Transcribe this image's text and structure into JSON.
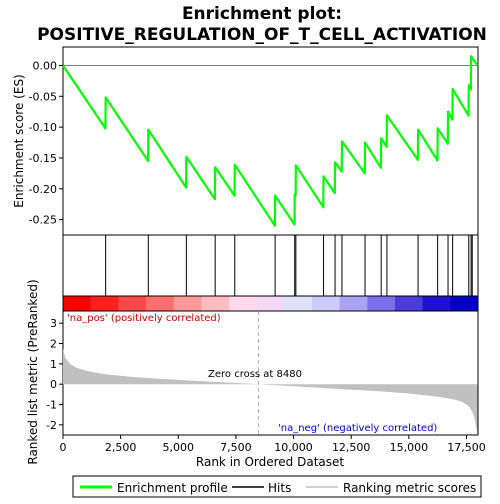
{
  "chart_data": {
    "type": "line",
    "title_line1": "Enrichment plot:",
    "title_line2": "POSITIVE_REGULATION_OF_T_CELL_ACTIVATION",
    "es_ylabel": "Enrichment score (ES)",
    "metric_ylabel": "Ranked list metric (PreRanked)",
    "xlabel": "Rank in Ordered Dataset",
    "x_range": [
      0,
      18000
    ],
    "es_ylim": [
      -0.275,
      0.03
    ],
    "metric_ylim": [
      -2.5,
      3.6
    ],
    "x_ticks": [
      "0",
      "2,500",
      "5,000",
      "7,500",
      "10,000",
      "12,500",
      "15,000",
      "17,500"
    ],
    "x_tick_values": [
      0,
      2500,
      5000,
      7500,
      10000,
      12500,
      15000,
      17500
    ],
    "es_ticks": [
      "0.00",
      "-0.05",
      "-0.10",
      "-0.15",
      "-0.20",
      "-0.25"
    ],
    "es_tick_values": [
      0.0,
      -0.05,
      -0.1,
      -0.15,
      -0.2,
      -0.25
    ],
    "metric_ticks": [
      "3",
      "2",
      "1",
      "0",
      "-1",
      "-2"
    ],
    "metric_tick_values": [
      3,
      2,
      1,
      0,
      -1,
      -2
    ],
    "positive_label": "'na_pos' (positively correlated)",
    "negative_label": "'na_neg' (negatively correlated)",
    "zero_cross_label": "Zero cross at 8480",
    "zero_cross": 8480,
    "legend": {
      "enrichment": "Enrichment profile",
      "hits": "Hits",
      "ranking": "Ranking metric scores"
    },
    "colors": {
      "enrichment": "#00ff00",
      "hits": "#000000",
      "ranking": "#c0c0c0",
      "positive_strong": "#ff0000",
      "negative_strong": "#0000ff"
    },
    "hits": [
      1850,
      3700,
      5350,
      6600,
      7450,
      9200,
      10050,
      10100,
      11300,
      11800,
      12100,
      13100,
      13800,
      14050,
      15400,
      16250,
      16700,
      16900,
      17600,
      17700,
      17750
    ],
    "enrichment_profile": {
      "x": [
        0,
        1840,
        1850,
        3690,
        3700,
        5340,
        5350,
        6590,
        6600,
        7440,
        7450,
        9190,
        9200,
        10040,
        10050,
        10090,
        10100,
        11290,
        11300,
        11790,
        11800,
        12090,
        12100,
        13090,
        13100,
        13790,
        13800,
        14040,
        14050,
        15390,
        15400,
        16240,
        16250,
        16690,
        16700,
        16890,
        16900,
        17590,
        17600,
        17690,
        17700,
        17740,
        17750,
        17980
      ],
      "y": [
        0.0,
        -0.102,
        -0.052,
        -0.155,
        -0.104,
        -0.198,
        -0.148,
        -0.217,
        -0.165,
        -0.211,
        -0.161,
        -0.26,
        -0.211,
        -0.258,
        -0.209,
        -0.211,
        -0.162,
        -0.23,
        -0.18,
        -0.207,
        -0.157,
        -0.172,
        -0.123,
        -0.175,
        -0.125,
        -0.166,
        -0.118,
        -0.132,
        -0.081,
        -0.153,
        -0.104,
        -0.154,
        -0.102,
        -0.127,
        -0.075,
        -0.088,
        -0.038,
        -0.081,
        -0.032,
        -0.039,
        0.015,
        0.013,
        0.012,
        0.0
      ]
    },
    "ranking_metric": {
      "x": [
        0,
        100,
        300,
        600,
        1000,
        1500,
        2000,
        3000,
        4000,
        5000,
        6000,
        7000,
        8000,
        8480,
        9000,
        10000,
        11000,
        12000,
        13000,
        14000,
        15000,
        15500,
        16000,
        16500,
        17000,
        17300,
        17500,
        17650,
        17750,
        17850,
        17900,
        17980
      ],
      "y": [
        1.75,
        1.3,
        1.0,
        0.8,
        0.66,
        0.55,
        0.47,
        0.36,
        0.28,
        0.21,
        0.15,
        0.09,
        0.03,
        0.0,
        -0.04,
        -0.1,
        -0.17,
        -0.24,
        -0.3,
        -0.37,
        -0.46,
        -0.52,
        -0.58,
        -0.66,
        -0.76,
        -0.87,
        -1.0,
        -1.15,
        -1.35,
        -1.65,
        -2.0,
        -2.35
      ]
    },
    "heatmap_colors": [
      "#ff0000",
      "#ff2020",
      "#ff4848",
      "#ff6e6e",
      "#ff9898",
      "#ffbcbc",
      "#ffd8ee",
      "#f2d8f6",
      "#e0e0fa",
      "#cccaf8",
      "#a8a4f2",
      "#7a70ea",
      "#4c3cde",
      "#2010d0",
      "#0000c8"
    ]
  }
}
